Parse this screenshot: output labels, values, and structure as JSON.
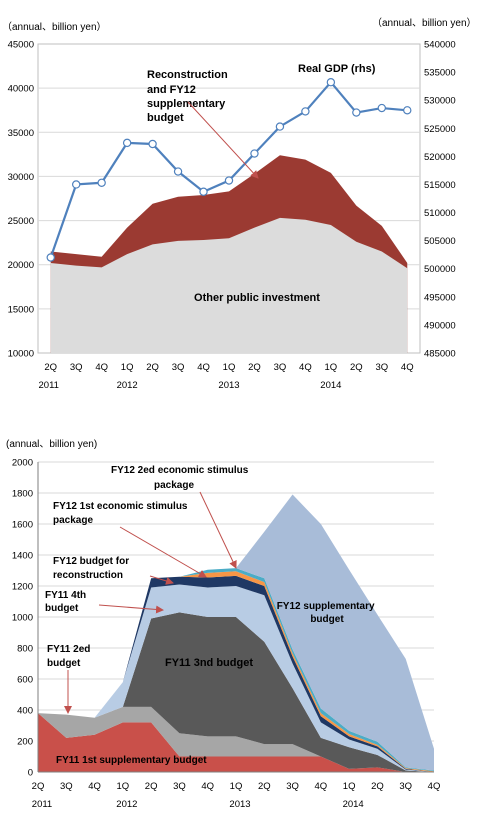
{
  "chart_data": [
    {
      "type": "area",
      "units_left": "（annual、billion yen）",
      "units_right": "（annual、billion yen）",
      "categories": [
        "2Q",
        "3Q",
        "4Q",
        "1Q",
        "2Q",
        "3Q",
        "4Q",
        "1Q",
        "2Q",
        "3Q",
        "4Q",
        "1Q",
        "2Q",
        "3Q",
        "4Q"
      ],
      "years": [
        {
          "label": "2011",
          "index": 0
        },
        {
          "label": "2012",
          "index": 3
        },
        {
          "label": "2013",
          "index": 7
        },
        {
          "label": "2014",
          "index": 11
        }
      ],
      "ylim_left": [
        10000,
        45000
      ],
      "yticks_left": [
        10000,
        15000,
        20000,
        25000,
        30000,
        35000,
        40000,
        45000
      ],
      "ylim_right": [
        485000,
        540000
      ],
      "yticks_right": [
        485000,
        490000,
        495000,
        500000,
        505000,
        510000,
        515000,
        520000,
        525000,
        530000,
        535000,
        540000
      ],
      "series": [
        {
          "name": "Other public investment",
          "kind": "area",
          "axis": "left",
          "color": "#dcdcdc",
          "values": [
            20200,
            19900,
            19700,
            21200,
            22300,
            22700,
            22800,
            23000,
            24200,
            25300,
            25100,
            24500,
            22600,
            21500,
            19600
          ]
        },
        {
          "name": "Reconstruction and FY12 supplementary budget",
          "kind": "area",
          "axis": "left",
          "color": "#9b3a32",
          "values": [
            21500,
            21200,
            20900,
            24200,
            26900,
            27700,
            27900,
            28300,
            30300,
            32400,
            31900,
            30400,
            26700,
            24400,
            20200
          ]
        },
        {
          "name": "Real GDP (rhs)",
          "kind": "line",
          "axis": "right",
          "color": "#4f81bd",
          "values": [
            502000,
            515000,
            515300,
            522400,
            522200,
            517300,
            513700,
            515700,
            520500,
            525300,
            528000,
            533200,
            527800,
            528600,
            528200
          ]
        }
      ],
      "labels": {
        "other": "Other public investment",
        "recon": [
          "Reconstruction",
          "and FY12",
          "supplementary",
          "budget"
        ],
        "gdp": "Real GDP (rhs)"
      }
    },
    {
      "type": "area",
      "units": "(annual、billion yen)",
      "categories": [
        "2Q",
        "3Q",
        "4Q",
        "1Q",
        "2Q",
        "3Q",
        "4Q",
        "1Q",
        "2Q",
        "3Q",
        "4Q",
        "1Q",
        "2Q",
        "3Q",
        "4Q"
      ],
      "years": [
        {
          "label": "2011",
          "index": 0
        },
        {
          "label": "2012",
          "index": 3
        },
        {
          "label": "2013",
          "index": 7
        },
        {
          "label": "2014",
          "index": 11
        }
      ],
      "ylim": [
        0,
        2000
      ],
      "yticks": [
        0,
        200,
        400,
        600,
        800,
        1000,
        1200,
        1400,
        1600,
        1800,
        2000
      ],
      "series": [
        {
          "name": "FY11 1st supplementary budget",
          "color": "#c9504a",
          "values": [
            380,
            220,
            240,
            320,
            320,
            100,
            100,
            100,
            100,
            100,
            100,
            20,
            30,
            0,
            0
          ]
        },
        {
          "name": "FY11 2ed budget",
          "color": "#a6a6a6",
          "values": [
            0,
            150,
            110,
            100,
            100,
            150,
            130,
            130,
            80,
            80,
            0,
            0,
            0,
            0,
            0
          ]
        },
        {
          "name": "FY11 3nd budget",
          "color": "#595959",
          "values": [
            0,
            0,
            0,
            0,
            570,
            780,
            770,
            770,
            660,
            360,
            120,
            140,
            80,
            10,
            0
          ]
        },
        {
          "name": "FY11 4th budget",
          "color": "#b8cce4",
          "values": [
            0,
            0,
            0,
            160,
            200,
            180,
            190,
            200,
            300,
            160,
            100,
            50,
            40,
            5,
            0
          ]
        },
        {
          "name": "FY12 budget for reconstruction",
          "color": "#1f3864",
          "values": [
            0,
            0,
            0,
            0,
            60,
            50,
            65,
            65,
            60,
            45,
            40,
            20,
            15,
            5,
            0
          ]
        },
        {
          "name": "FY12 1st economic stimulus package",
          "color": "#f79646",
          "values": [
            0,
            0,
            0,
            0,
            0,
            0,
            30,
            30,
            25,
            20,
            20,
            15,
            10,
            5,
            5
          ]
        },
        {
          "name": "FY12 2ed economic stimulus package",
          "color": "#4bacc6",
          "values": [
            0,
            0,
            0,
            0,
            0,
            0,
            20,
            20,
            25,
            25,
            30,
            20,
            20,
            5,
            5
          ]
        },
        {
          "name": "FY12 supplementary budget",
          "color": "#a8bcd8",
          "values": [
            0,
            0,
            0,
            0,
            0,
            0,
            0,
            0,
            300,
            1000,
            1190,
            1040,
            820,
            700,
            140
          ]
        }
      ],
      "labels": {
        "s1": "FY11  1st supplementary budget",
        "s2": [
          "FY11   2ed",
          "budget"
        ],
        "s3": "FY11   3nd budget",
        "s4": [
          "FY11   4th",
          "budget"
        ],
        "s5": [
          "FY12 budget for",
          "reconstruction"
        ],
        "s6": [
          "FY12 1st economic stimulus",
          "package"
        ],
        "s7": [
          "FY12 2ed economic stimulus",
          "package"
        ],
        "s8": [
          "FY12 supplementary",
          "budget"
        ]
      }
    }
  ]
}
